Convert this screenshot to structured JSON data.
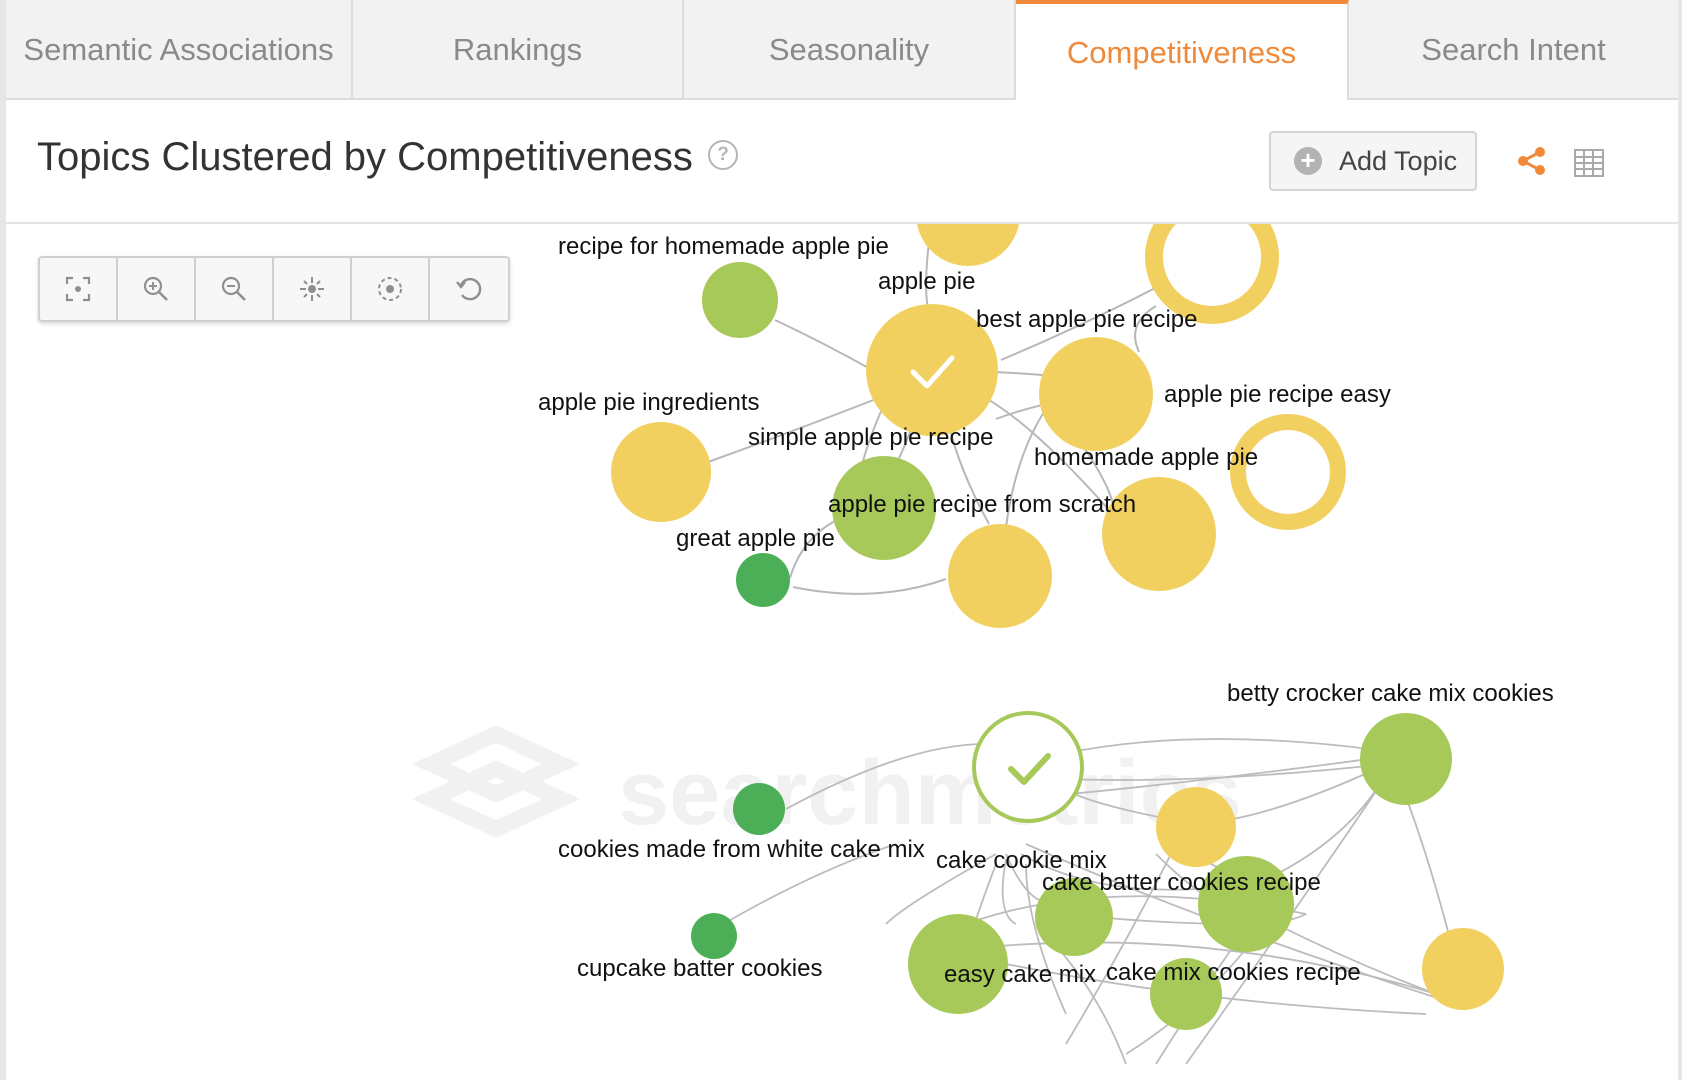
{
  "tabs": [
    {
      "label": "Semantic Associations",
      "active": false
    },
    {
      "label": "Rankings",
      "active": false
    },
    {
      "label": "Seasonality",
      "active": false
    },
    {
      "label": "Competitiveness",
      "active": true
    },
    {
      "label": "Search Intent",
      "active": false
    }
  ],
  "header": {
    "title": "Topics Clustered by Competitiveness",
    "help_icon": "?",
    "add_topic_label": "Add Topic",
    "plus_icon": "+"
  },
  "toolbar": {
    "tools": [
      "fit-screen-icon",
      "zoom-in-icon",
      "zoom-out-icon",
      "center-icon",
      "focus-icon",
      "reset-icon"
    ]
  },
  "watermark": "searchmetrics",
  "colors": {
    "accent": "#f08a3a",
    "yellow": "#f2d060",
    "light_green": "#a6c95a",
    "dark_green": "#4caf57",
    "edge": "#b8b8b8"
  },
  "graph": {
    "labels": {
      "recipe_for_homemade": "recipe for homemade apple pie",
      "apple_pie": "apple pie",
      "best_recipe": "best apple pie recipe",
      "recipe_easy": "apple pie recipe easy",
      "ingredients": "apple pie ingredients",
      "simple": "simple apple pie recipe",
      "homemade": "homemade apple pie",
      "from_scratch": "apple pie recipe from scratch",
      "great": "great apple pie",
      "betty": "betty crocker cake mix cookies",
      "white_cake": "cookies made from white cake mix",
      "cake_cookie_mix": "cake cookie mix",
      "cake_batter": "cake batter cookies recipe",
      "cupcake": "cupcake batter cookies",
      "easy_cake_mix": "easy cake mix",
      "cake_mix_cookies": "cake mix cookies recipe"
    }
  }
}
